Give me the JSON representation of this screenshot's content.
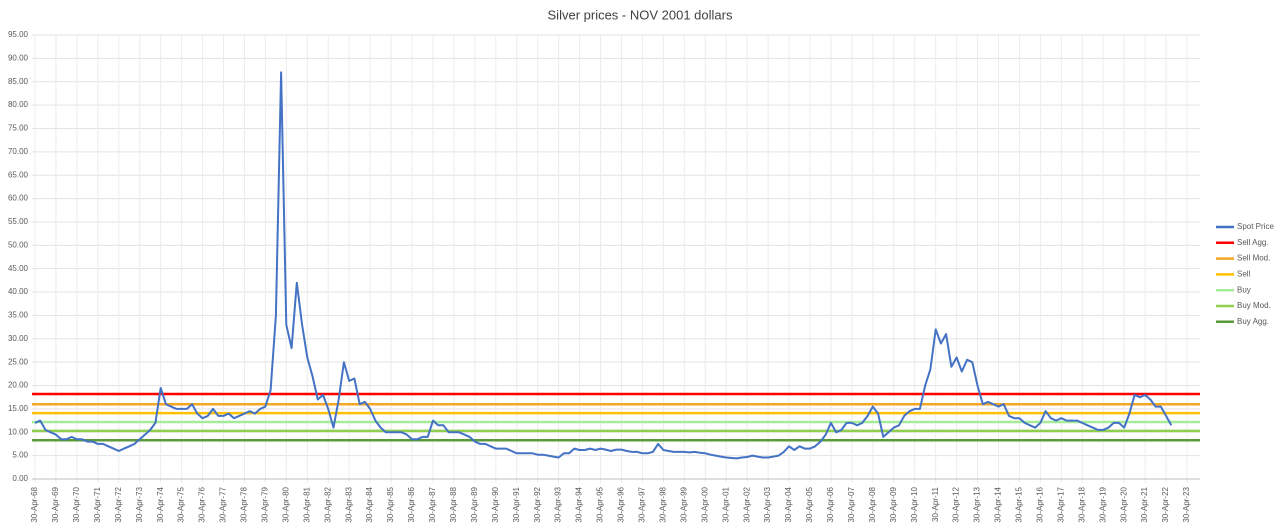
{
  "chart_data": {
    "type": "line",
    "title": "Silver prices - NOV 2001 dollars",
    "categories": [
      "30-Apr-68",
      null,
      null,
      null,
      "30-Apr-69",
      null,
      null,
      null,
      "30-Apr-70",
      null,
      null,
      null,
      "30-Apr-71",
      null,
      null,
      null,
      "30-Apr-72",
      null,
      null,
      null,
      "30-Apr-73",
      null,
      null,
      null,
      "30-Apr-74",
      null,
      null,
      null,
      "30-Apr-75",
      null,
      null,
      null,
      "30-Apr-76",
      null,
      null,
      null,
      "30-Apr-77",
      null,
      null,
      null,
      "30-Apr-78",
      null,
      null,
      null,
      "30-Apr-79",
      null,
      null,
      null,
      "30-Apr-80",
      null,
      null,
      null,
      "30-Apr-81",
      null,
      null,
      null,
      "30-Apr-82",
      null,
      null,
      null,
      "30-Apr-83",
      null,
      null,
      null,
      "30-Apr-84",
      null,
      null,
      null,
      "30-Apr-85",
      null,
      null,
      null,
      "30-Apr-86",
      null,
      null,
      null,
      "30-Apr-87",
      null,
      null,
      null,
      "30-Apr-88",
      null,
      null,
      null,
      "30-Apr-89",
      null,
      null,
      null,
      "30-Apr-90",
      null,
      null,
      null,
      "30-Apr-91",
      null,
      null,
      null,
      "30-Apr-92",
      null,
      null,
      null,
      "30-Apr-93",
      null,
      null,
      null,
      "30-Apr-94",
      null,
      null,
      null,
      "30-Apr-95",
      null,
      null,
      null,
      "30-Apr-96",
      null,
      null,
      null,
      "30-Apr-97",
      null,
      null,
      null,
      "30-Apr-98",
      null,
      null,
      null,
      "30-Apr-99",
      null,
      null,
      null,
      "30-Apr-00",
      null,
      null,
      null,
      "30-Apr-01",
      null,
      null,
      null,
      "30-Apr-02",
      null,
      null,
      null,
      "30-Apr-03",
      null,
      null,
      null,
      "30-Apr-04",
      null,
      null,
      null,
      "30-Apr-05",
      null,
      null,
      null,
      "30-Apr-06",
      null,
      null,
      null,
      "30-Apr-07",
      null,
      null,
      null,
      "30-Apr-08",
      null,
      null,
      null,
      "30-Apr-09",
      null,
      null,
      null,
      "30-Apr-10",
      null,
      null,
      null,
      "30-Apr-11",
      null,
      null,
      null,
      "30-Apr-12",
      null,
      null,
      null,
      "30-Apr-13",
      null,
      null,
      null,
      "30-Apr-14",
      null,
      null,
      null,
      "30-Apr-15",
      null,
      null,
      null,
      "30-Apr-16",
      null,
      null,
      null,
      "30-Apr-17",
      null,
      null,
      null,
      "30-Apr-18",
      null,
      null,
      null,
      "30-Apr-19",
      null,
      null,
      null,
      "30-Apr-20",
      null,
      null,
      null,
      "30-Apr-21",
      null,
      null,
      null,
      "30-Apr-22",
      null,
      null,
      null,
      "30-Apr-23"
    ],
    "series": [
      {
        "name": "Spot Price",
        "color": "#4472c4",
        "values": [
          12,
          12.5,
          10.5,
          10,
          9.5,
          8.5,
          8.5,
          9,
          8.5,
          8.5,
          8,
          8,
          7.5,
          7.5,
          7,
          6.5,
          6,
          6.5,
          7,
          7.5,
          8.5,
          9.5,
          10.5,
          12,
          19.5,
          16,
          15.5,
          15,
          15,
          15,
          16,
          14,
          13,
          13.5,
          15,
          13.5,
          13.5,
          14,
          13,
          13.5,
          14,
          14.5,
          14,
          15,
          15.5,
          19,
          35,
          87,
          33,
          28,
          42,
          33,
          26,
          22,
          17,
          18,
          15,
          11,
          17,
          25,
          21,
          21.5,
          16,
          16.5,
          15,
          12.5,
          11,
          10,
          10,
          10,
          10,
          9.5,
          8.5,
          8.5,
          9,
          9,
          12.5,
          11.5,
          11.5,
          10,
          10,
          10,
          9.5,
          9,
          8,
          7.5,
          7.5,
          7,
          6.5,
          6.5,
          6.5,
          6,
          5.5,
          5.5,
          5.5,
          5.5,
          5.2,
          5.2,
          5,
          4.8,
          4.6,
          5.5,
          5.5,
          6.5,
          6.2,
          6.2,
          6.5,
          6.2,
          6.5,
          6.3,
          6,
          6.3,
          6.3,
          6,
          5.8,
          5.8,
          5.5,
          5.5,
          5.8,
          7.5,
          6.2,
          6,
          5.8,
          5.8,
          5.8,
          5.7,
          5.8,
          5.6,
          5.5,
          5.2,
          5,
          4.8,
          4.6,
          4.5,
          4.4,
          4.6,
          4.7,
          5,
          4.8,
          4.6,
          4.6,
          4.8,
          5,
          5.8,
          7,
          6.2,
          7,
          6.5,
          6.5,
          7,
          8,
          9.5,
          12,
          10,
          10.5,
          12,
          12,
          11.5,
          12,
          13.5,
          15.5,
          14,
          9,
          10,
          11,
          11.5,
          13.5,
          14.5,
          15,
          15,
          20,
          23.5,
          32,
          29,
          31,
          24,
          26,
          23,
          25.5,
          25,
          20,
          16,
          16.5,
          16,
          15.5,
          16,
          13.5,
          13,
          13,
          12,
          11.5,
          11,
          12,
          14.5,
          13,
          12.5,
          13,
          12.5,
          12.5,
          12.5,
          12,
          11.5,
          11,
          10.5,
          10.5,
          11,
          12,
          12,
          11,
          14,
          18,
          17.5,
          18,
          17,
          15.5,
          15.5,
          13.5,
          11.5,
          null,
          null,
          null
        ]
      }
    ],
    "hlines": [
      {
        "name": "Sell Agg.",
        "color": "#ff0000",
        "value": 18.2
      },
      {
        "name": "Sell Mod.",
        "color": "#f5a623",
        "value": 16
      },
      {
        "name": "Sell",
        "color": "#ffc000",
        "value": 14.1
      },
      {
        "name": "Buy",
        "color": "#a6ec98",
        "value": 12.2
      },
      {
        "name": "Buy Mod.",
        "color": "#8fce4e",
        "value": 10.3
      },
      {
        "name": "Buy Agg.",
        "color": "#5a9a3a",
        "value": 8.3
      }
    ],
    "ylim": [
      0,
      95
    ],
    "yticks": [
      {
        "value": 0,
        "label": "0.00"
      },
      {
        "value": 5,
        "label": "5.00"
      },
      {
        "value": 10,
        "label": "10.00"
      },
      {
        "value": 15,
        "label": "15.00"
      },
      {
        "value": 20,
        "label": "20.00"
      },
      {
        "value": 25,
        "label": "25.00"
      },
      {
        "value": 30,
        "label": "30.00"
      },
      {
        "value": 35,
        "label": "35.00"
      },
      {
        "value": 40,
        "label": "40.00"
      },
      {
        "value": 45,
        "label": "45.00"
      },
      {
        "value": 50,
        "label": "50.00"
      },
      {
        "value": 55,
        "label": "55.00"
      },
      {
        "value": 60,
        "label": "60.00"
      },
      {
        "value": 65,
        "label": "65.00"
      },
      {
        "value": 70,
        "label": "70.00"
      },
      {
        "value": 75,
        "label": "75.00"
      },
      {
        "value": 80,
        "label": "80.00"
      },
      {
        "value": 85,
        "label": "85.00"
      },
      {
        "value": 90,
        "label": "90.00"
      },
      {
        "value": 95,
        "label": "95.00"
      }
    ],
    "grid": true
  }
}
